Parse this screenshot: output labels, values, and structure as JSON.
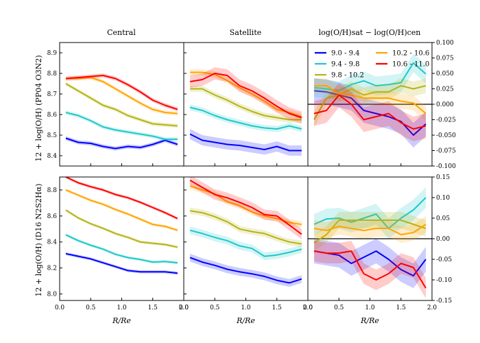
{
  "chart_data": {
    "type": "line",
    "titles": {
      "central": "Central",
      "satellite": "Satellite",
      "diff": "log(O/H)sat − log(O/H)cen"
    },
    "xlabel": "R/Re",
    "xlim": [
      0,
      2.0
    ],
    "xticks": [
      "0.0",
      "0.5",
      "1.0",
      "1.5",
      "2.0"
    ],
    "ylabels": {
      "top": "12 + log(O/H) (PP04 O3N2)",
      "bottom": "12 + log(O/H) (D16 N2S2Hα)"
    },
    "legend": {
      "placement": "upper-left of top-right panel",
      "entries": [
        {
          "label": "9.0 - 9.4",
          "color": "#0000ff"
        },
        {
          "label": "10.2 - 10.6",
          "color": "#ffa500"
        },
        {
          "label": "9.4 - 9.8",
          "color": "#1ec8c8"
        },
        {
          "label": "10.6 - 11.0",
          "color": "#ff0000"
        },
        {
          "label": "9.8 - 10.2",
          "color": "#b4b414"
        }
      ]
    },
    "x": [
      0.1,
      0.3,
      0.5,
      0.7,
      0.9,
      1.1,
      1.3,
      1.5,
      1.7,
      1.9
    ],
    "panels": [
      {
        "id": "top-central",
        "ylim": [
          8.35,
          8.95
        ],
        "yticks": [
          "8.4",
          "8.5",
          "8.6",
          "8.7",
          "8.8",
          "8.9"
        ],
        "series": [
          {
            "bin": "9.0 - 9.4",
            "values": [
              8.485,
              8.465,
              8.46,
              8.445,
              8.435,
              8.445,
              8.44,
              8.455,
              8.475,
              8.455
            ],
            "err": 0.01
          },
          {
            "bin": "9.4 - 9.8",
            "values": [
              8.61,
              8.595,
              8.57,
              8.54,
              8.525,
              8.515,
              8.505,
              8.495,
              8.48,
              8.48
            ],
            "err": 0.01
          },
          {
            "bin": "9.8 - 10.2",
            "values": [
              8.75,
              8.715,
              8.68,
              8.645,
              8.625,
              8.595,
              8.575,
              8.555,
              8.55,
              8.545
            ],
            "err": 0.01
          },
          {
            "bin": "10.2 - 10.6",
            "values": [
              8.775,
              8.775,
              8.78,
              8.76,
              8.725,
              8.69,
              8.655,
              8.625,
              8.61,
              8.605
            ],
            "err": 0.01
          },
          {
            "bin": "10.6 - 11.0",
            "values": [
              8.775,
              8.78,
              8.785,
              8.79,
              8.775,
              8.745,
              8.71,
              8.67,
              8.645,
              8.625
            ],
            "err": 0.01
          }
        ]
      },
      {
        "id": "top-satellite",
        "ylim": [
          8.35,
          8.95
        ],
        "yticks": [
          "8.4",
          "8.5",
          "8.6",
          "8.7",
          "8.8",
          "8.9"
        ],
        "series": [
          {
            "bin": "9.0 - 9.4",
            "values": [
              8.505,
              8.475,
              8.465,
              8.455,
              8.45,
              8.44,
              8.43,
              8.445,
              8.425,
              8.425
            ],
            "err": 0.025
          },
          {
            "bin": "9.4 - 9.8",
            "values": [
              8.635,
              8.62,
              8.595,
              8.575,
              8.56,
              8.545,
              8.535,
              8.53,
              8.545,
              8.53
            ],
            "err": 0.015
          },
          {
            "bin": "9.8 - 10.2",
            "values": [
              8.725,
              8.725,
              8.695,
              8.67,
              8.64,
              8.615,
              8.595,
              8.585,
              8.575,
              8.575
            ],
            "err": 0.015
          },
          {
            "bin": "10.2 - 10.6",
            "values": [
              8.805,
              8.805,
              8.795,
              8.765,
              8.73,
              8.7,
              8.665,
              8.625,
              8.61,
              8.59
            ],
            "err": 0.015
          },
          {
            "bin": "10.6 - 11.0",
            "values": [
              8.76,
              8.77,
              8.8,
              8.79,
              8.74,
              8.715,
              8.68,
              8.64,
              8.605,
              8.585
            ],
            "err": 0.03
          }
        ]
      },
      {
        "id": "top-diff",
        "ylim": [
          -0.1,
          0.1
        ],
        "axis_side": "right",
        "yticks": [
          "0.100",
          "0.075",
          "0.050",
          "0.025",
          "0.000",
          "-0.025",
          "-0.050",
          "-0.075",
          "-0.100"
        ],
        "series": [
          {
            "bin": "9.0 - 9.4",
            "values": [
              0.022,
              0.02,
              0.015,
              0.01,
              -0.01,
              -0.015,
              -0.02,
              -0.028,
              -0.05,
              -0.032
            ],
            "err": 0.02
          },
          {
            "bin": "9.4 - 9.8",
            "values": [
              0.027,
              0.025,
              0.022,
              0.032,
              0.038,
              0.03,
              0.032,
              0.035,
              0.067,
              0.049
            ],
            "err": 0.015
          },
          {
            "bin": "9.8 - 10.2",
            "values": [
              -0.025,
              0.01,
              0.015,
              0.025,
              0.015,
              0.02,
              0.02,
              0.03,
              0.025,
              0.03
            ],
            "err": 0.012
          },
          {
            "bin": "10.2 - 10.6",
            "values": [
              0.03,
              0.03,
              0.018,
              0.015,
              0.01,
              0.01,
              0.01,
              0.005,
              0.002,
              -0.015
            ],
            "err": 0.012
          },
          {
            "bin": "10.6 - 11.0",
            "values": [
              -0.015,
              -0.01,
              0.015,
              0.0,
              -0.025,
              -0.02,
              -0.015,
              -0.03,
              -0.04,
              -0.035
            ],
            "err": 0.02
          }
        ]
      },
      {
        "id": "bottom-central",
        "ylim": [
          7.95,
          8.9
        ],
        "yticks": [
          "8.0",
          "8.2",
          "8.4",
          "8.6",
          "8.8"
        ],
        "series": [
          {
            "bin": "9.0 - 9.4",
            "values": [
              8.31,
              8.29,
              8.27,
              8.24,
              8.21,
              8.18,
              8.17,
              8.17,
              8.17,
              8.16
            ],
            "err": 0.012
          },
          {
            "bin": "9.4 - 9.8",
            "values": [
              8.455,
              8.41,
              8.375,
              8.345,
              8.305,
              8.28,
              8.265,
              8.245,
              8.25,
              8.24
            ],
            "err": 0.012
          },
          {
            "bin": "9.8 - 10.2",
            "values": [
              8.645,
              8.585,
              8.54,
              8.505,
              8.465,
              8.435,
              8.4,
              8.39,
              8.38,
              8.36
            ],
            "err": 0.012
          },
          {
            "bin": "10.2 - 10.6",
            "values": [
              8.8,
              8.76,
              8.72,
              8.69,
              8.65,
              8.615,
              8.575,
              8.535,
              8.52,
              8.49
            ],
            "err": 0.012
          },
          {
            "bin": "10.6 - 11.0",
            "values": [
              8.9,
              8.855,
              8.825,
              8.8,
              8.765,
              8.74,
              8.705,
              8.665,
              8.625,
              8.58
            ],
            "err": 0.012
          }
        ]
      },
      {
        "id": "bottom-satellite",
        "ylim": [
          7.95,
          8.9
        ],
        "yticks": [
          "8.0",
          "8.2",
          "8.4",
          "8.6",
          "8.8"
        ],
        "series": [
          {
            "bin": "9.0 - 9.4",
            "values": [
              8.28,
              8.245,
              8.22,
              8.19,
              8.17,
              8.155,
              8.135,
              8.105,
              8.085,
              8.115
            ],
            "err": 0.03
          },
          {
            "bin": "9.4 - 9.8",
            "values": [
              8.49,
              8.465,
              8.435,
              8.41,
              8.37,
              8.35,
              8.29,
              8.3,
              8.32,
              8.345
            ],
            "err": 0.03
          },
          {
            "bin": "9.8 - 10.2",
            "values": [
              8.64,
              8.625,
              8.595,
              8.555,
              8.5,
              8.48,
              8.465,
              8.43,
              8.4,
              8.385
            ],
            "err": 0.025
          },
          {
            "bin": "10.2 - 10.6",
            "values": [
              8.83,
              8.8,
              8.77,
              8.71,
              8.68,
              8.63,
              8.6,
              8.58,
              8.55,
              8.535
            ],
            "err": 0.025
          },
          {
            "bin": "10.6 - 11.0",
            "values": [
              8.875,
              8.82,
              8.765,
              8.74,
              8.705,
              8.665,
              8.61,
              8.6,
              8.53,
              8.46
            ],
            "err": 0.04
          }
        ]
      },
      {
        "id": "bottom-diff",
        "ylim": [
          -0.15,
          0.15
        ],
        "axis_side": "right",
        "yticks": [
          "0.15",
          "0.10",
          "0.05",
          "0.00",
          "-0.05",
          "-0.10",
          "-0.15"
        ],
        "series": [
          {
            "bin": "9.0 - 9.4",
            "values": [
              -0.03,
              -0.035,
              -0.04,
              -0.06,
              -0.045,
              -0.03,
              -0.05,
              -0.075,
              -0.09,
              -0.05
            ],
            "err": 0.03
          },
          {
            "bin": "9.4 - 9.8",
            "values": [
              0.035,
              0.048,
              0.05,
              0.04,
              0.05,
              0.06,
              0.025,
              0.05,
              0.07,
              0.1
            ],
            "err": 0.025
          },
          {
            "bin": "9.8 - 10.2",
            "values": [
              -0.01,
              0.01,
              0.045,
              0.045,
              0.045,
              0.045,
              0.045,
              0.045,
              0.035,
              0.025
            ],
            "err": 0.02
          },
          {
            "bin": "10.2 - 10.6",
            "values": [
              0.025,
              0.02,
              0.03,
              0.025,
              0.02,
              0.025,
              0.025,
              0.01,
              0.015,
              0.035
            ],
            "err": 0.02
          },
          {
            "bin": "10.6 - 11.0",
            "values": [
              -0.03,
              -0.035,
              -0.035,
              -0.03,
              -0.085,
              -0.1,
              -0.085,
              -0.06,
              -0.07,
              -0.12
            ],
            "err": 0.025
          }
        ]
      }
    ]
  }
}
